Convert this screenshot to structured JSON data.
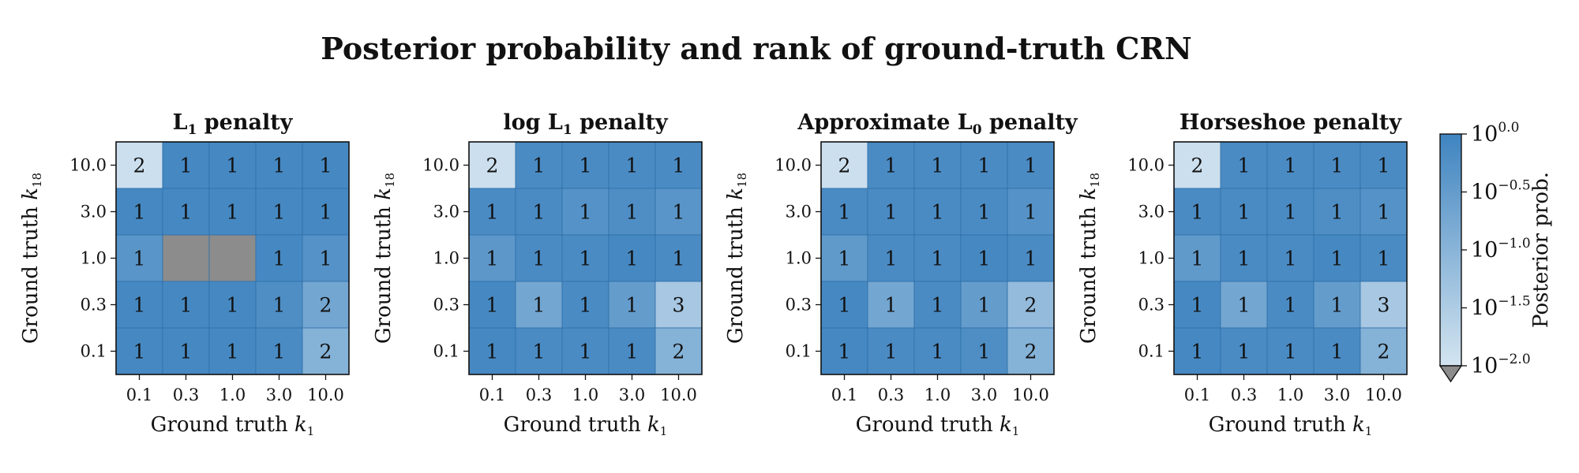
{
  "colors": {
    "masked": "#8c8c8c",
    "cell_border": "#2f6fa8",
    "cmap_low": "#d3e4f0",
    "cmap_high": "#3f84c0"
  },
  "chart_data": [
    {
      "type": "heatmap",
      "title_main": "L",
      "title_sub": "1",
      "title_rest": " penalty",
      "title_text": "L1 penalty",
      "xlabel": "Ground truth k1",
      "xlabel_main": "Ground truth ",
      "xlabel_var": "k",
      "xlabel_sub": "1",
      "ylabel": "Ground truth k18",
      "ylabel_main": "Ground truth ",
      "ylabel_var": "k",
      "ylabel_sub": "18",
      "x_categories": [
        "0.1",
        "0.3",
        "1.0",
        "3.0",
        "10.0"
      ],
      "y_categories": [
        "10.0",
        "3.0",
        "1.0",
        "0.3",
        "0.1"
      ],
      "log10_prob": [
        [
          -1.9,
          -0.08,
          -0.08,
          -0.1,
          -0.1
        ],
        [
          -0.1,
          -0.1,
          -0.1,
          -0.1,
          -0.1
        ],
        [
          -0.35,
          null,
          null,
          -0.1,
          -0.3
        ],
        [
          -0.1,
          -0.1,
          -0.1,
          -0.2,
          -0.7
        ],
        [
          -0.1,
          -0.1,
          -0.1,
          -0.15,
          -0.95
        ]
      ],
      "rank": [
        [
          "2",
          "1",
          "1",
          "1",
          "1"
        ],
        [
          "1",
          "1",
          "1",
          "1",
          "1"
        ],
        [
          "1",
          "",
          "",
          "1",
          "1"
        ],
        [
          "1",
          "1",
          "1",
          "1",
          "2"
        ],
        [
          "1",
          "1",
          "1",
          "1",
          "2"
        ]
      ]
    },
    {
      "type": "heatmap",
      "title_main": "log L",
      "title_sub": "1",
      "title_rest": " penalty",
      "title_text": "log L1 penalty",
      "xlabel": "Ground truth k1",
      "xlabel_main": "Ground truth ",
      "xlabel_var": "k",
      "xlabel_sub": "1",
      "ylabel": "Ground truth k18",
      "ylabel_main": "Ground truth ",
      "ylabel_var": "k",
      "ylabel_sub": "18",
      "x_categories": [
        "0.1",
        "0.3",
        "1.0",
        "3.0",
        "10.0"
      ],
      "y_categories": [
        "10.0",
        "3.0",
        "1.0",
        "0.3",
        "0.1"
      ],
      "log10_prob": [
        [
          -1.9,
          -0.15,
          -0.15,
          -0.15,
          -0.15
        ],
        [
          -0.15,
          -0.15,
          -0.3,
          -0.2,
          -0.35
        ],
        [
          -0.4,
          -0.15,
          -0.15,
          -0.1,
          -0.15
        ],
        [
          -0.1,
          -0.7,
          -0.15,
          -0.5,
          -1.4
        ],
        [
          -0.1,
          -0.15,
          -0.15,
          -0.15,
          -0.95
        ]
      ],
      "rank": [
        [
          "2",
          "1",
          "1",
          "1",
          "1"
        ],
        [
          "1",
          "1",
          "1",
          "1",
          "1"
        ],
        [
          "1",
          "1",
          "1",
          "1",
          "1"
        ],
        [
          "1",
          "1",
          "1",
          "1",
          "3"
        ],
        [
          "1",
          "1",
          "1",
          "1",
          "2"
        ]
      ]
    },
    {
      "type": "heatmap",
      "title_main": "Approximate L",
      "title_sub": "0",
      "title_rest": " penalty",
      "title_text": "Approximate L0 penalty",
      "xlabel": "Ground truth k1",
      "xlabel_main": "Ground truth ",
      "xlabel_var": "k",
      "xlabel_sub": "1",
      "ylabel": "Ground truth k18",
      "ylabel_main": "Ground truth ",
      "ylabel_var": "k",
      "ylabel_sub": "18",
      "x_categories": [
        "0.1",
        "0.3",
        "1.0",
        "3.0",
        "10.0"
      ],
      "y_categories": [
        "10.0",
        "3.0",
        "1.0",
        "0.3",
        "0.1"
      ],
      "log10_prob": [
        [
          -1.9,
          -0.15,
          -0.15,
          -0.15,
          -0.15
        ],
        [
          -0.15,
          -0.15,
          -0.15,
          -0.15,
          -0.3
        ],
        [
          -0.45,
          -0.15,
          -0.15,
          -0.1,
          -0.15
        ],
        [
          -0.1,
          -0.7,
          -0.15,
          -0.5,
          -1.15
        ],
        [
          -0.1,
          -0.15,
          -0.15,
          -0.2,
          -0.95
        ]
      ],
      "rank": [
        [
          "2",
          "1",
          "1",
          "1",
          "1"
        ],
        [
          "1",
          "1",
          "1",
          "1",
          "1"
        ],
        [
          "1",
          "1",
          "1",
          "1",
          "1"
        ],
        [
          "1",
          "1",
          "1",
          "1",
          "2"
        ],
        [
          "1",
          "1",
          "1",
          "1",
          "2"
        ]
      ]
    },
    {
      "type": "heatmap",
      "title_main": "Horseshoe penalty",
      "title_sub": "",
      "title_rest": "",
      "title_text": "Horseshoe penalty",
      "xlabel": "Ground truth k1",
      "xlabel_main": "Ground truth ",
      "xlabel_var": "k",
      "xlabel_sub": "1",
      "ylabel": "Ground truth k18",
      "ylabel_main": "Ground truth ",
      "ylabel_var": "k",
      "ylabel_sub": "18",
      "x_categories": [
        "0.1",
        "0.3",
        "1.0",
        "3.0",
        "10.0"
      ],
      "y_categories": [
        "10.0",
        "3.0",
        "1.0",
        "0.3",
        "0.1"
      ],
      "log10_prob": [
        [
          -1.9,
          -0.15,
          -0.15,
          -0.15,
          -0.15
        ],
        [
          -0.15,
          -0.15,
          -0.15,
          -0.2,
          -0.3
        ],
        [
          -0.45,
          -0.15,
          -0.15,
          -0.1,
          -0.15
        ],
        [
          -0.1,
          -0.7,
          -0.15,
          -0.5,
          -1.4
        ],
        [
          -0.1,
          -0.15,
          -0.15,
          -0.15,
          -0.95
        ]
      ],
      "rank": [
        [
          "2",
          "1",
          "1",
          "1",
          "1"
        ],
        [
          "1",
          "1",
          "1",
          "1",
          "1"
        ],
        [
          "1",
          "1",
          "1",
          "1",
          "1"
        ],
        [
          "1",
          "1",
          "1",
          "1",
          "3"
        ],
        [
          "1",
          "1",
          "1",
          "1",
          "2"
        ]
      ]
    }
  ],
  "figure": {
    "suptitle": "Posterior probability and rank of ground-truth CRN"
  },
  "colorbar": {
    "label": "Posterior prob.",
    "scale": "log10",
    "range": [
      -2.0,
      0.0
    ],
    "extend": "min",
    "ticks": [
      0.0,
      -0.5,
      -1.0,
      -1.5,
      -2.0
    ],
    "tick_base": "10",
    "tick_exponents": [
      "0.0",
      "−0.5",
      "−1.0",
      "−1.5",
      "−2.0"
    ]
  }
}
